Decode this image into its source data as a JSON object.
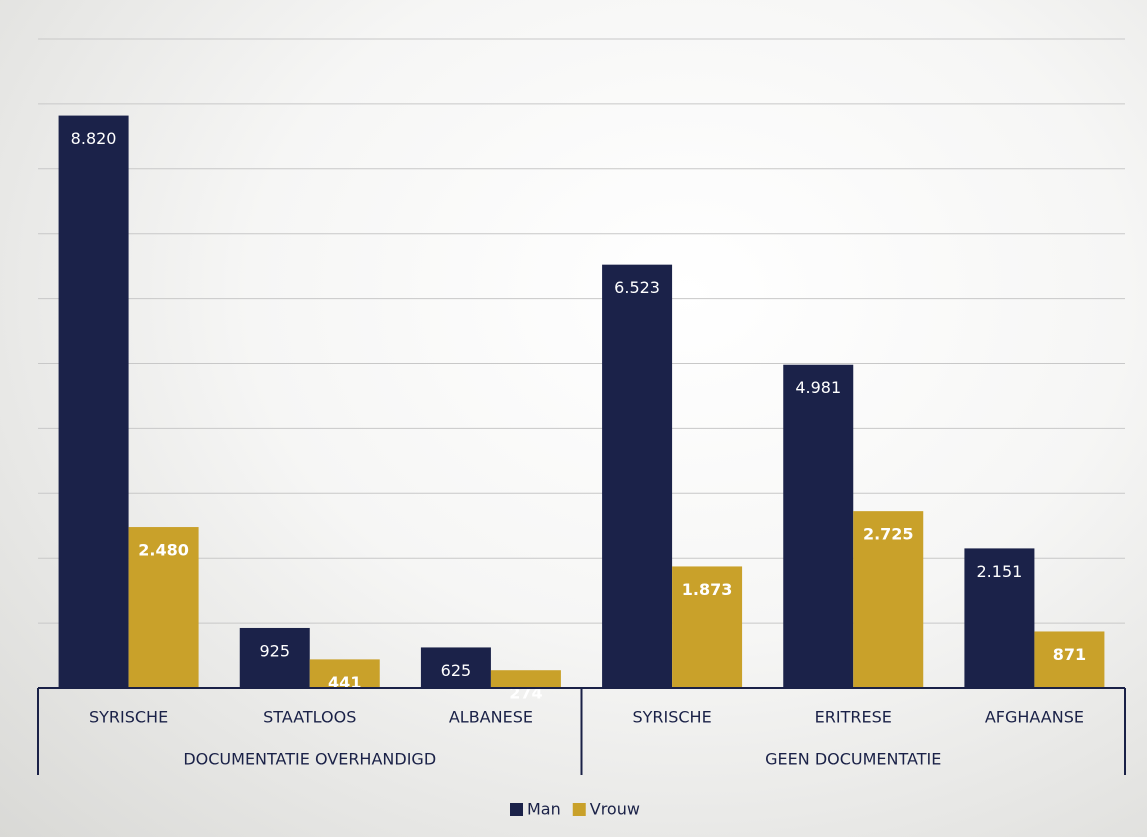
{
  "chart_data": {
    "type": "bar",
    "groups": [
      {
        "label": "DOCUMENTATIE OVERHANDIGD",
        "categories": [
          "SYRISCHE",
          "STAATLOOS",
          "ALBANESE"
        ]
      },
      {
        "label": "GEEN DOCUMENTATIE",
        "categories": [
          "SYRISCHE",
          "ERITRESE",
          "AFGHAANSE"
        ]
      }
    ],
    "series": [
      {
        "name": "Man",
        "color": "#1b2249",
        "values": [
          8820,
          925,
          625,
          6523,
          4981,
          2151
        ],
        "value_labels": [
          "8.820",
          "925",
          "625",
          "6.523",
          "4.981",
          "2.151"
        ]
      },
      {
        "name": "Vrouw",
        "color": "#c9a12a",
        "values": [
          2480,
          441,
          274,
          1873,
          2725,
          871
        ],
        "value_labels": [
          "2.480",
          "441",
          "274",
          "1.873",
          "2.725",
          "871"
        ]
      }
    ],
    "ylim": [
      0,
      10000
    ],
    "yticks": [
      0,
      1000,
      2000,
      3000,
      4000,
      5000,
      6000,
      7000,
      8000,
      9000,
      10000
    ],
    "grid": true
  }
}
